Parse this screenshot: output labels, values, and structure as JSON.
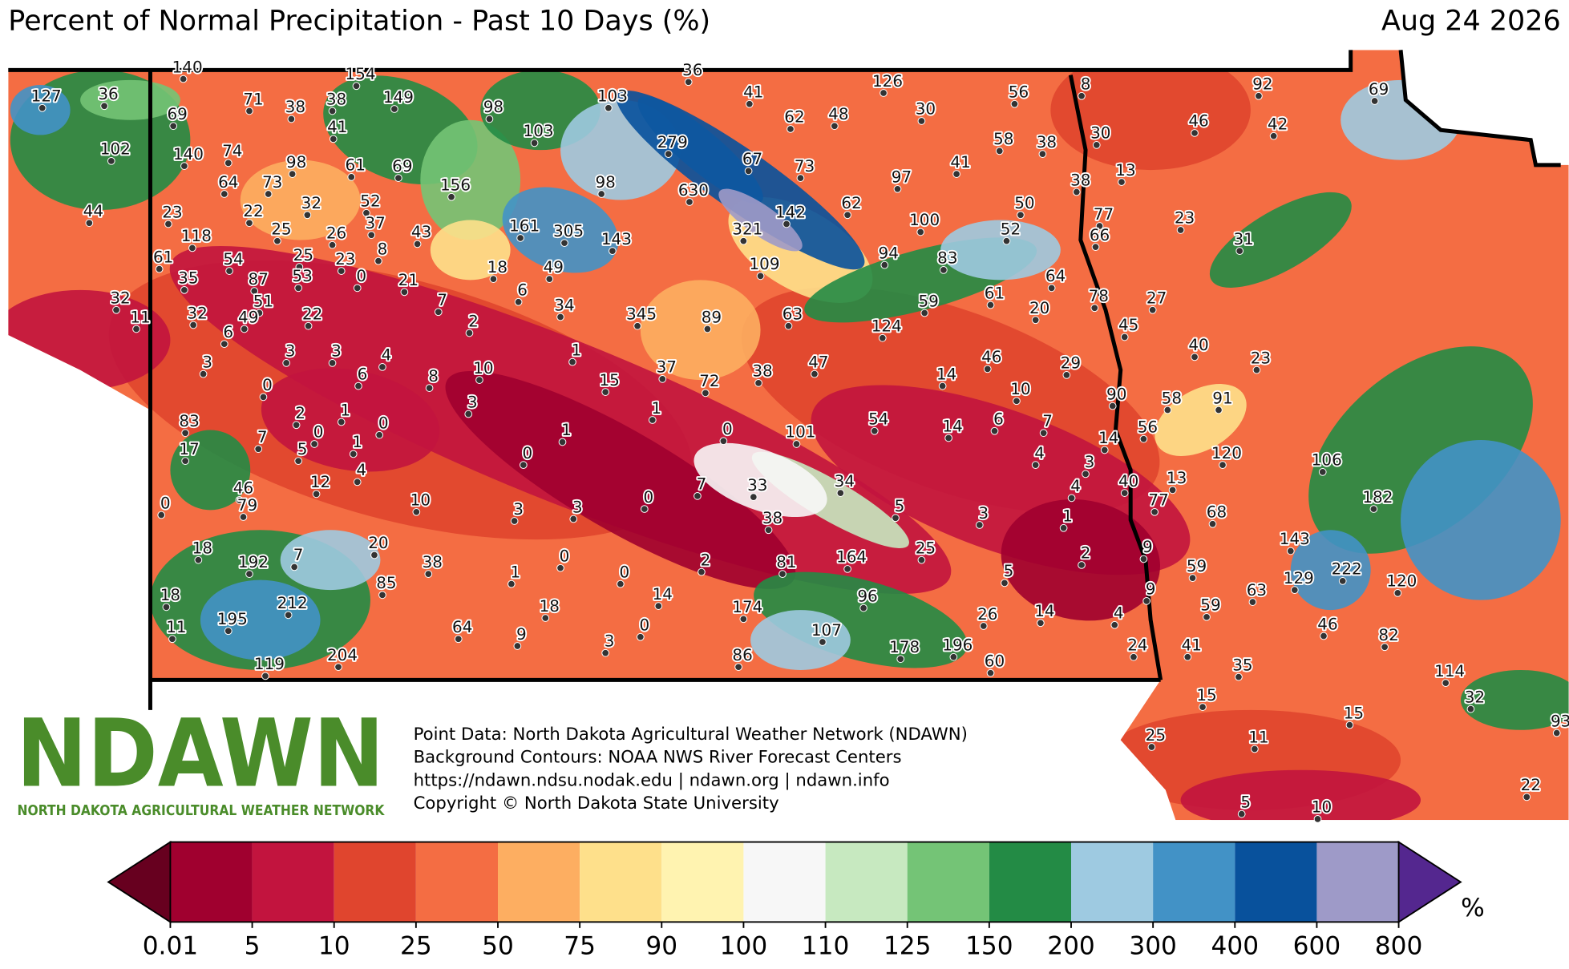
{
  "header": {
    "title": "Percent of Normal Precipitation - Past 10 Days (%)",
    "date": "Aug 24 2026"
  },
  "stations": [
    127,
    36,
    69,
    71,
    38,
    154,
    140,
    38,
    149,
    98,
    103,
    36,
    41,
    62,
    48,
    126,
    30,
    56,
    8,
    92,
    69,
    102,
    41,
    103,
    279,
    46,
    42,
    30,
    140,
    74,
    98,
    61,
    69,
    67,
    73,
    58,
    38,
    41,
    13,
    38,
    64,
    73,
    98,
    630,
    156,
    97,
    44,
    32,
    52,
    23,
    22,
    142,
    62,
    50,
    77,
    23,
    100,
    37,
    161,
    305,
    143,
    321,
    52,
    66,
    31,
    118,
    25,
    26,
    43,
    61,
    54,
    25,
    23,
    8,
    18,
    49,
    109,
    94,
    83,
    64,
    35,
    87,
    53,
    0,
    21,
    6,
    78,
    27,
    32,
    51,
    11,
    32,
    49,
    22,
    7,
    34,
    59,
    61,
    20,
    6,
    2,
    345,
    89,
    63,
    124,
    45,
    40,
    23,
    3,
    3,
    4,
    1,
    3,
    46,
    29,
    37,
    47,
    6,
    8,
    10,
    15,
    72,
    38,
    14,
    10,
    0,
    90,
    58,
    91,
    83,
    2,
    1,
    0,
    3,
    1,
    17,
    7,
    0,
    5,
    1,
    1,
    0,
    101,
    54,
    14,
    6,
    7,
    56,
    14,
    120,
    106,
    0,
    4,
    4,
    3,
    13,
    40,
    46,
    12,
    33,
    34,
    4,
    7,
    79,
    10,
    3,
    3,
    0,
    5,
    3,
    1,
    77,
    182,
    0,
    38,
    68,
    143,
    18,
    7,
    20,
    9,
    2,
    25,
    192,
    38,
    0,
    2,
    81,
    164,
    59,
    1,
    0,
    5,
    222,
    129,
    120,
    63,
    85,
    9,
    18,
    212,
    96,
    14,
    18,
    174,
    59,
    26,
    14,
    4,
    195,
    11,
    64,
    0,
    107,
    46,
    82,
    9,
    3,
    24,
    41,
    178,
    196,
    204,
    86,
    60,
    119,
    35,
    114,
    15,
    32,
    15,
    25,
    11,
    93,
    22,
    5,
    10
  ],
  "credits": [
    "Point Data: North Dakota Agricultural Weather Network (NDAWN)",
    "Background Contours: NOAA NWS River Forecast Centers",
    "https://ndawn.ndsu.nodak.edu | ndawn.org | ndawn.info",
    "Copyright © North Dakota State University"
  ],
  "logo": {
    "name": "NDAWN",
    "subtitle": "NORTH DAKOTA AGRICULTURAL WEATHER NETWORK",
    "color": "#4a8c2a"
  },
  "legend": {
    "ticks": [
      0.01,
      5,
      10,
      25,
      50,
      75,
      90,
      100,
      110,
      125,
      150,
      200,
      300,
      400,
      600,
      800
    ],
    "colors": [
      "#a0002f",
      "#c2143e",
      "#e0452e",
      "#f46d43",
      "#fdae61",
      "#fee08b",
      "#fff3b0",
      "#f7f7f7",
      "#c7e9c0",
      "#74c476",
      "#238b45",
      "#9ecae1",
      "#4292c6",
      "#08519c",
      "#9e9ac8"
    ],
    "under_color": "#67001f",
    "over_color": "#54278f",
    "unit": "%"
  }
}
